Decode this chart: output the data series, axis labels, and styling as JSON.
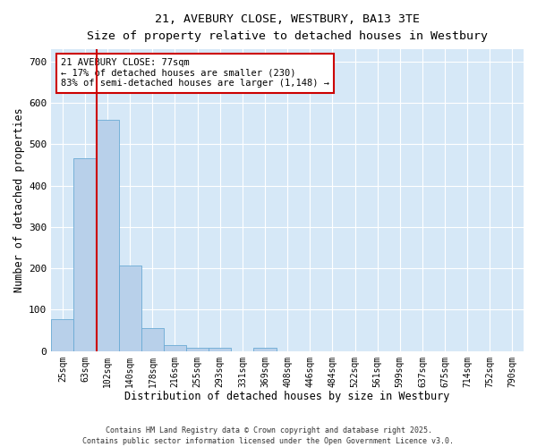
{
  "title_line1": "21, AVEBURY CLOSE, WESTBURY, BA13 3TE",
  "title_line2": "Size of property relative to detached houses in Westbury",
  "xlabel": "Distribution of detached houses by size in Westbury",
  "ylabel": "Number of detached properties",
  "categories": [
    "25sqm",
    "63sqm",
    "102sqm",
    "140sqm",
    "178sqm",
    "216sqm",
    "255sqm",
    "293sqm",
    "331sqm",
    "369sqm",
    "408sqm",
    "446sqm",
    "484sqm",
    "522sqm",
    "561sqm",
    "599sqm",
    "637sqm",
    "675sqm",
    "714sqm",
    "752sqm",
    "790sqm"
  ],
  "values": [
    78,
    467,
    560,
    208,
    55,
    15,
    9,
    9,
    0,
    8,
    0,
    0,
    0,
    0,
    0,
    0,
    0,
    0,
    0,
    0,
    0
  ],
  "bar_color": "#b8d0ea",
  "bar_edge_color": "#6aaad4",
  "background_color": "#d6e8f7",
  "grid_color": "#ffffff",
  "vline_color": "#cc0000",
  "annotation_text": "21 AVEBURY CLOSE: 77sqm\n← 17% of detached houses are smaller (230)\n83% of semi-detached houses are larger (1,148) →",
  "annotation_box_color": "#cc0000",
  "ylim": [
    0,
    730
  ],
  "yticks": [
    0,
    100,
    200,
    300,
    400,
    500,
    600,
    700
  ],
  "footer": "Contains HM Land Registry data © Crown copyright and database right 2025.\nContains public sector information licensed under the Open Government Licence v3.0."
}
